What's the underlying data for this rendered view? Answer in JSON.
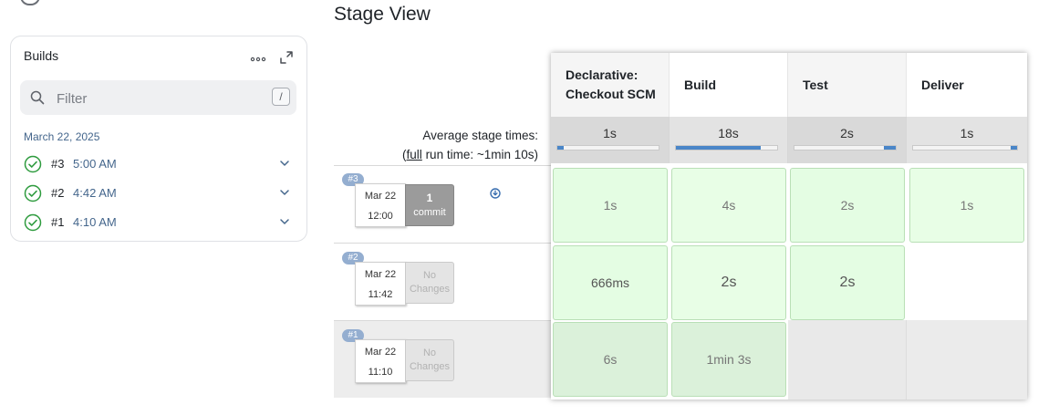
{
  "builds_panel": {
    "title": "Builds",
    "filter_placeholder": "Filter",
    "filter_shortcut": "/",
    "date_heading": "March 22, 2025",
    "items": [
      {
        "number": "#3",
        "time": "5:00 AM",
        "status": "success"
      },
      {
        "number": "#2",
        "time": "4:42 AM",
        "status": "success"
      },
      {
        "number": "#1",
        "time": "4:10 AM",
        "status": "success"
      }
    ]
  },
  "stage_view": {
    "title": "Stage View",
    "avg_label_line1": "Average stage times:",
    "avg_label_open": "(",
    "avg_label_link": "full",
    "avg_label_rest": " run time: ~1min 10s)",
    "stages": [
      {
        "line1": "Declarative:",
        "line2": "Checkout SCM",
        "avg": "1s",
        "avg_fraction": 0.06
      },
      {
        "line1": "Build",
        "line2": "",
        "avg": "18s",
        "avg_fraction": 0.84
      },
      {
        "line1": "Test",
        "line2": "",
        "avg": "2s",
        "avg_fraction": 0.12
      },
      {
        "line1": "Deliver",
        "line2": "",
        "avg": "1s",
        "avg_fraction": 0.06
      }
    ],
    "runs": [
      {
        "badge": "#3",
        "date": "Mar 22",
        "time": "12:00",
        "changes_line1": "1",
        "changes_line2": "commit",
        "cells": [
          "1s",
          "4s",
          "2s",
          "1s"
        ]
      },
      {
        "badge": "#2",
        "date": "Mar 22",
        "time": "11:42",
        "changes_line1": "No",
        "changes_line2": "Changes",
        "cells": [
          "666ms",
          "2s",
          "2s"
        ]
      },
      {
        "badge": "#1",
        "date": "Mar 22",
        "time": "11:10",
        "changes_line1": "No",
        "changes_line2": "Changes",
        "cells": [
          "6s",
          "1min 3s"
        ]
      }
    ]
  },
  "colors": {
    "success_green": "#2e9b3e",
    "link_blue": "#44668c",
    "bar_blue": "#4a86c8",
    "cell_green": "#e4fde3"
  },
  "icons": [
    "search-icon",
    "more-horizontal-icon",
    "expand-icon",
    "check-circle-icon",
    "chevron-down-icon",
    "download-icon"
  ]
}
